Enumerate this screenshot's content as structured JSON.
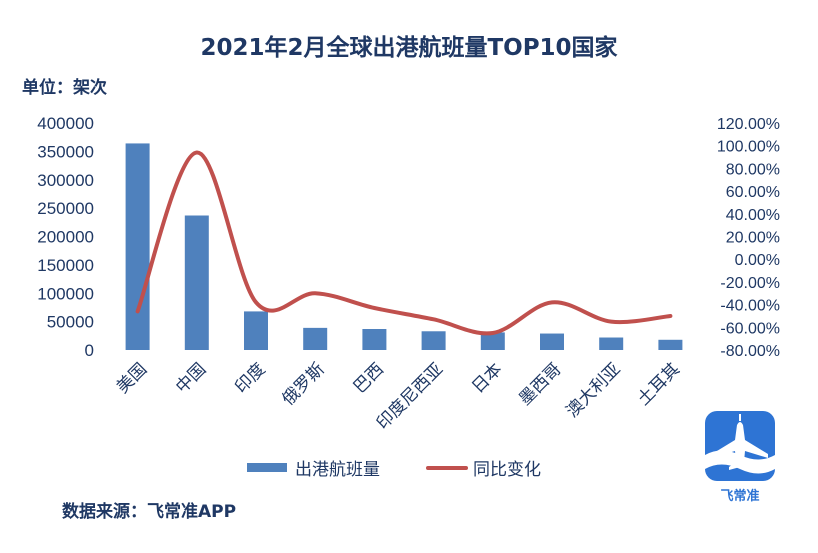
{
  "chart_data": {
    "type": "bar",
    "title": "2021年2月全球出港航班量TOP10国家",
    "unit_label": "单位：架次",
    "categories": [
      "美国",
      "中国",
      "印度",
      "俄罗斯",
      "巴西",
      "印度尼西亚",
      "日本",
      "墨西哥",
      "澳大利亚",
      "土耳其"
    ],
    "series": [
      {
        "name": "出港航班量",
        "type": "bar",
        "axis": "left",
        "color": "#4f81bd",
        "values": [
          364000,
          237000,
          68000,
          39000,
          37000,
          33000,
          31000,
          29000,
          22000,
          18000
        ]
      },
      {
        "name": "同比变化",
        "type": "line",
        "axis": "right",
        "color": "#c0504d",
        "values": [
          -0.46,
          0.94,
          -0.38,
          -0.3,
          -0.43,
          -0.53,
          -0.65,
          -0.38,
          -0.55,
          -0.5
        ]
      }
    ],
    "y_left": {
      "min": 0,
      "max": 400000,
      "ticks": [
        "400000",
        "350000",
        "300000",
        "250000",
        "200000",
        "150000",
        "100000",
        "50000",
        "0"
      ]
    },
    "y_right": {
      "min": -0.8,
      "max": 1.2,
      "ticks": [
        "120.00%",
        "100.00%",
        "80.00%",
        "60.00%",
        "40.00%",
        "20.00%",
        "0.00%",
        "-20.00%",
        "-40.00%",
        "-60.00%",
        "-80.00%"
      ]
    },
    "grid": false,
    "legend_position": "bottom"
  },
  "source": "数据来源：飞常准APP",
  "logo": {
    "text": "飞常准",
    "icon": "airplane-icon",
    "color": "#2e74d4"
  }
}
